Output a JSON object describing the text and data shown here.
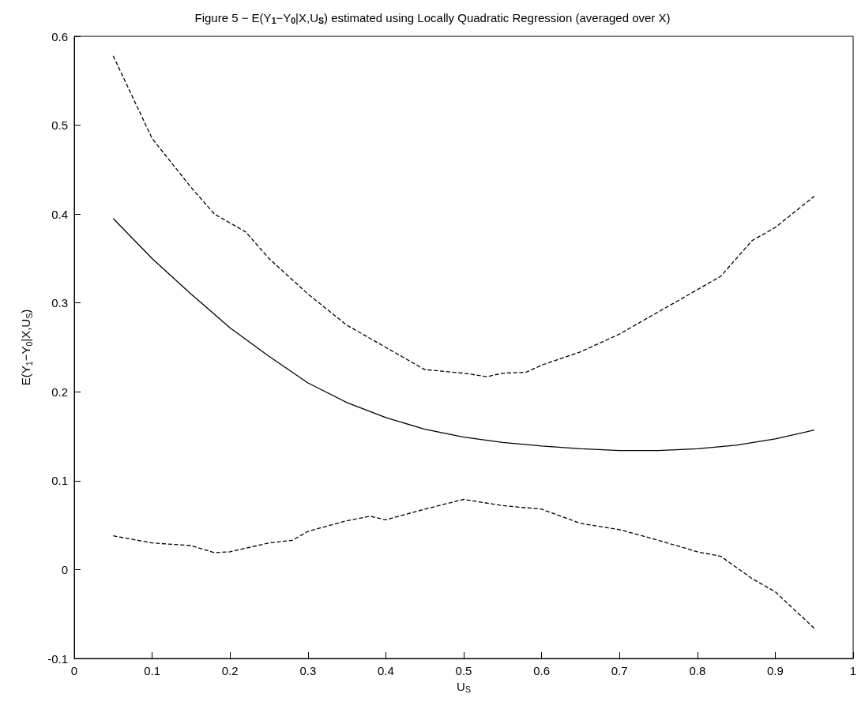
{
  "chart_data": {
    "type": "line",
    "title": "Figure 5 − E(Y$_{1}$−Y$_{0}$|X,U$_{S}$) estimated using Locally Quadratic Regression (averaged over X)",
    "xlabel": "U$_{S}$",
    "ylabel": "E(Y$_{1}$−Y$_{0}$|X,U$_{S}$)",
    "xlim": [
      0,
      1
    ],
    "xticks": [
      0,
      0.1,
      0.2,
      0.3,
      0.4,
      0.5,
      0.6,
      0.7,
      0.8,
      0.9,
      1
    ],
    "ylim": [
      -0.1,
      0.6
    ],
    "yticks": [
      -0.1,
      0,
      0.1,
      0.2,
      0.3,
      0.4,
      0.5,
      0.6
    ],
    "grid": false,
    "marker": "none",
    "series": [
      {
        "color": "#000000",
        "line_style": "solid",
        "x": [
          0.05,
          0.1,
          0.15,
          0.2,
          0.25,
          0.3,
          0.35,
          0.4,
          0.45,
          0.5,
          0.55,
          0.6,
          0.65,
          0.7,
          0.75,
          0.8,
          0.85,
          0.9,
          0.95
        ],
        "values": [
          0.395,
          0.35,
          0.31,
          0.272,
          0.24,
          0.21,
          0.188,
          0.171,
          0.158,
          0.149,
          0.143,
          0.139,
          0.136,
          0.134,
          0.134,
          0.136,
          0.14,
          0.147,
          0.157
        ]
      },
      {
        "color": "#000000",
        "line_style": "dashed",
        "x": [
          0.05,
          0.1,
          0.15,
          0.18,
          0.22,
          0.25,
          0.3,
          0.35,
          0.4,
          0.45,
          0.5,
          0.53,
          0.55,
          0.58,
          0.6,
          0.65,
          0.7,
          0.75,
          0.8,
          0.83,
          0.87,
          0.9,
          0.95
        ],
        "values": [
          0.578,
          0.485,
          0.43,
          0.4,
          0.38,
          0.35,
          0.31,
          0.275,
          0.25,
          0.225,
          0.221,
          0.217,
          0.221,
          0.222,
          0.23,
          0.245,
          0.265,
          0.29,
          0.315,
          0.33,
          0.37,
          0.385,
          0.42
        ]
      },
      {
        "color": "#000000",
        "line_style": "dashed",
        "x": [
          0.05,
          0.1,
          0.15,
          0.18,
          0.2,
          0.25,
          0.28,
          0.3,
          0.35,
          0.38,
          0.4,
          0.45,
          0.5,
          0.55,
          0.6,
          0.65,
          0.7,
          0.75,
          0.8,
          0.83,
          0.87,
          0.9,
          0.95
        ],
        "values": [
          0.038,
          0.03,
          0.027,
          0.019,
          0.02,
          0.03,
          0.033,
          0.043,
          0.055,
          0.06,
          0.056,
          0.068,
          0.079,
          0.072,
          0.068,
          0.052,
          0.045,
          0.033,
          0.02,
          0.015,
          -0.01,
          -0.025,
          -0.066
        ]
      }
    ]
  }
}
